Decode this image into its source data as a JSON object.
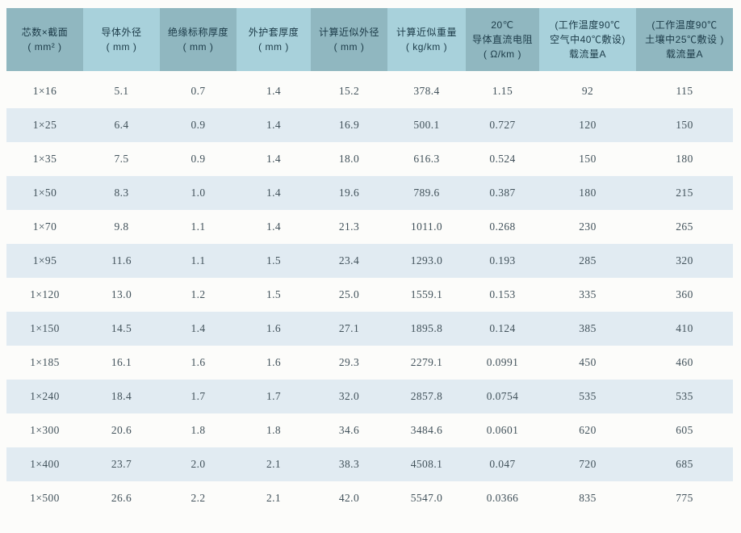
{
  "colors": {
    "page_background": "#fcfcfa",
    "header_cell_dark": "#90b7c0",
    "header_cell_light": "#a8d1db",
    "row_stripe": "#e1ebf2",
    "row_plain": "#fdfdfc",
    "header_text": "#1b3a47",
    "data_text": "#42525b"
  },
  "chart_data": {
    "type": "table",
    "grid": "row-striped, no vertical rules",
    "columns": [
      {
        "key": "spec",
        "shade": "dark",
        "lines": [
          "芯数×截面",
          "( mm² )"
        ]
      },
      {
        "key": "conductor-od",
        "shade": "light",
        "lines": [
          "导体外径",
          "( mm )"
        ]
      },
      {
        "key": "insulation-thickness",
        "shade": "dark",
        "lines": [
          "绝缘标称厚度",
          "( mm )"
        ]
      },
      {
        "key": "sheath-thickness",
        "shade": "light",
        "lines": [
          "外护套厚度",
          "( mm )"
        ]
      },
      {
        "key": "approx-od",
        "shade": "dark",
        "lines": [
          "计算近似外径",
          "( mm )"
        ]
      },
      {
        "key": "approx-weight",
        "shade": "light",
        "lines": [
          "计算近似重量",
          "( kg/km )"
        ]
      },
      {
        "key": "dc-resistance-20c",
        "shade": "dark",
        "lines": [
          "20℃",
          "导体直流电阻",
          "( Ω/km )"
        ]
      },
      {
        "key": "ampacity-air-40c",
        "shade": "light",
        "lines": [
          "(工作温度90℃",
          "空气中40℃敷设)",
          "载流量A"
        ]
      },
      {
        "key": "ampacity-soil-25c",
        "shade": "dark",
        "lines": [
          "(工作温度90℃",
          "土壤中25℃敷设 )",
          "载流量A"
        ]
      }
    ],
    "rows": [
      [
        "1×16",
        "5.1",
        "0.7",
        "1.4",
        "15.2",
        "378.4",
        "1.15",
        "92",
        "115"
      ],
      [
        "1×25",
        "6.4",
        "0.9",
        "1.4",
        "16.9",
        "500.1",
        "0.727",
        "120",
        "150"
      ],
      [
        "1×35",
        "7.5",
        "0.9",
        "1.4",
        "18.0",
        "616.3",
        "0.524",
        "150",
        "180"
      ],
      [
        "1×50",
        "8.3",
        "1.0",
        "1.4",
        "19.6",
        "789.6",
        "0.387",
        "180",
        "215"
      ],
      [
        "1×70",
        "9.8",
        "1.1",
        "1.4",
        "21.3",
        "1011.0",
        "0.268",
        "230",
        "265"
      ],
      [
        "1×95",
        "11.6",
        "1.1",
        "1.5",
        "23.4",
        "1293.0",
        "0.193",
        "285",
        "320"
      ],
      [
        "1×120",
        "13.0",
        "1.2",
        "1.5",
        "25.0",
        "1559.1",
        "0.153",
        "335",
        "360"
      ],
      [
        "1×150",
        "14.5",
        "1.4",
        "1.6",
        "27.1",
        "1895.8",
        "0.124",
        "385",
        "410"
      ],
      [
        "1×185",
        "16.1",
        "1.6",
        "1.6",
        "29.3",
        "2279.1",
        "0.0991",
        "450",
        "460"
      ],
      [
        "1×240",
        "18.4",
        "1.7",
        "1.7",
        "32.0",
        "2857.8",
        "0.0754",
        "535",
        "535"
      ],
      [
        "1×300",
        "20.6",
        "1.8",
        "1.8",
        "34.6",
        "3484.6",
        "0.0601",
        "620",
        "605"
      ],
      [
        "1×400",
        "23.7",
        "2.0",
        "2.1",
        "38.3",
        "4508.1",
        "0.047",
        "720",
        "685"
      ],
      [
        "1×500",
        "26.6",
        "2.2",
        "2.1",
        "42.0",
        "5547.0",
        "0.0366",
        "835",
        "775"
      ]
    ]
  }
}
